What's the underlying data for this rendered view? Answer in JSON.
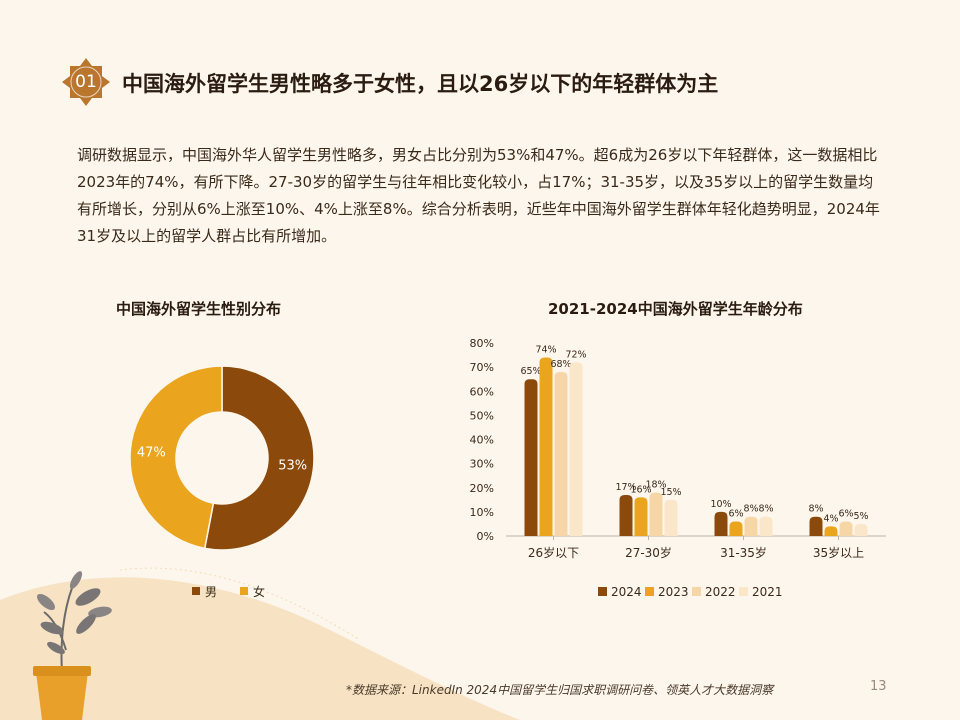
{
  "section": {
    "number": "01",
    "title": "中国海外留学生男性略多于女性，且以26岁以下的年轻群体为主"
  },
  "intro": "调研数据显示，中国海外华人留学生男性略多，男女占比分别为53%和47%。超6成为26岁以下年轻群体，这一数据相比2023年的74%，有所下降。27-30岁的留学生与往年相比变化较小，占17%；31-35岁，以及35岁以上的留学生数量均有所增长，分别从6%上涨至10%、4%上涨至8%。综合分析表明，近些年中国海外留学生群体年轻化趋势明显，2024年31岁及以上的留学人群占比有所增加。",
  "colors": {
    "male": "#8b4a0c",
    "female": "#eaa41e",
    "y2024": "#8b4a0c",
    "y2023": "#eaa41e",
    "y2022": "#f6d6a6",
    "y2021": "#fae6c8",
    "accent": "#c47a1a"
  },
  "chart_data": [
    {
      "type": "pie",
      "title": "中国海外留学生性别分布",
      "labels": [
        "男",
        "女"
      ],
      "values": [
        53,
        47
      ],
      "value_labels": [
        "53%",
        "47%"
      ],
      "donut": true,
      "legend": "bottom"
    },
    {
      "type": "bar",
      "title": "2021-2024中国海外留学生年龄分布",
      "categories": [
        "26岁以下",
        "27-30岁",
        "31-35岁",
        "35岁以上"
      ],
      "series": [
        {
          "name": "2024",
          "values": [
            65,
            17,
            10,
            8
          ]
        },
        {
          "name": "2023",
          "values": [
            74,
            16,
            6,
            4
          ]
        },
        {
          "name": "2022",
          "values": [
            68,
            18,
            8,
            6
          ]
        },
        {
          "name": "2021",
          "values": [
            72,
            15,
            8,
            5
          ]
        }
      ],
      "ylim": [
        0,
        80
      ],
      "yticks": [
        "0%",
        "10%",
        "20%",
        "30%",
        "40%",
        "50%",
        "60%",
        "70%",
        "80%"
      ],
      "legend": "bottom",
      "grid": false
    }
  ],
  "source": "*数据来源：LinkedIn 2024中国留学生归国求职调研问卷、领英人才大数据洞察",
  "page_number": "13"
}
